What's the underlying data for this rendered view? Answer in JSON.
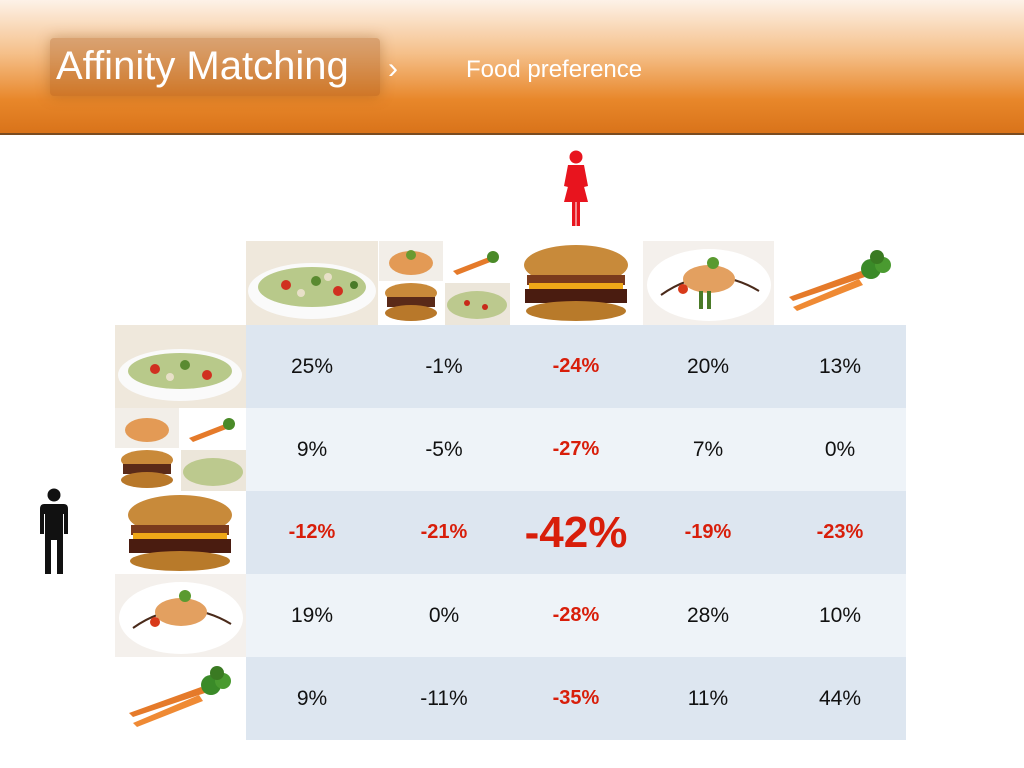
{
  "header": {
    "title": "Affinity Matching",
    "chevron": "›",
    "subtitle": "Food preference"
  },
  "icons": {
    "female": "female-figure-icon",
    "male": "male-figure-icon"
  },
  "colors": {
    "header_orange": "#e8872a",
    "negative": "#d81e0a",
    "row_dark": "#dde6f0",
    "row_light": "#eef3f8"
  },
  "columns": [
    {
      "food": "salad"
    },
    {
      "food": "mixed"
    },
    {
      "food": "burger"
    },
    {
      "food": "fish"
    },
    {
      "food": "carrot"
    }
  ],
  "rows": [
    {
      "food": "salad",
      "cells": [
        {
          "v": "25%"
        },
        {
          "v": "-1%"
        },
        {
          "v": "-24%",
          "neg": true
        },
        {
          "v": "20%"
        },
        {
          "v": "13%"
        }
      ]
    },
    {
      "food": "mixed",
      "cells": [
        {
          "v": "9%"
        },
        {
          "v": "-5%"
        },
        {
          "v": "-27%",
          "neg": true
        },
        {
          "v": "7%"
        },
        {
          "v": "0%"
        }
      ]
    },
    {
      "food": "burger",
      "cells": [
        {
          "v": "-12%",
          "neg": true
        },
        {
          "v": "-21%",
          "neg": true
        },
        {
          "v": "-42%",
          "big": true
        },
        {
          "v": "-19%",
          "neg": true
        },
        {
          "v": "-23%",
          "neg": true
        }
      ]
    },
    {
      "food": "fish",
      "cells": [
        {
          "v": "19%"
        },
        {
          "v": "0%"
        },
        {
          "v": "-28%",
          "neg": true
        },
        {
          "v": "28%"
        },
        {
          "v": "10%"
        }
      ]
    },
    {
      "food": "carrot",
      "cells": [
        {
          "v": "9%"
        },
        {
          "v": "-11%"
        },
        {
          "v": "-35%",
          "neg": true
        },
        {
          "v": "11%"
        },
        {
          "v": "44%"
        }
      ]
    }
  ]
}
